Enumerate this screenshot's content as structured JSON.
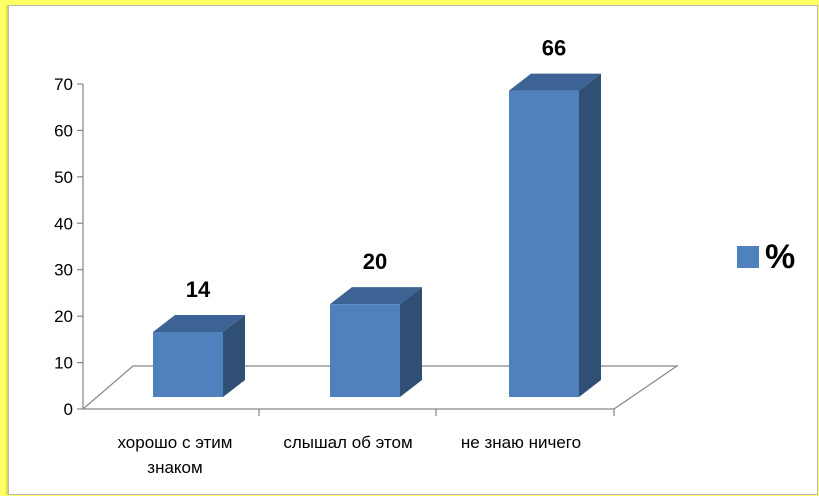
{
  "chart_data": {
    "type": "bar",
    "categories": [
      "хорошо с этим знаком",
      "слышал об этом",
      "не знаю ничего"
    ],
    "category_lines": [
      [
        "хорошо с этим",
        "знаком"
      ],
      [
        "слышал об этом"
      ],
      [
        "не знаю ничего"
      ]
    ],
    "series": [
      {
        "name": "%",
        "values": [
          14,
          20,
          66
        ]
      }
    ],
    "ylim": [
      0,
      70
    ],
    "yticks": [
      0,
      10,
      20,
      30,
      40,
      50,
      60,
      70
    ],
    "title": "",
    "xlabel": "",
    "ylabel": "",
    "legend_position": "right",
    "style": "3d-column",
    "colors": {
      "front": "#4f81bd",
      "side": "#2f4f75",
      "top": "#3c6394",
      "axis": "#868686",
      "page_bg": "#ffff66"
    }
  }
}
